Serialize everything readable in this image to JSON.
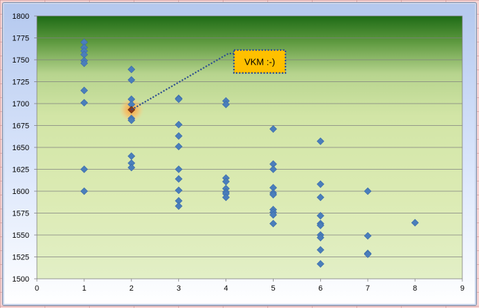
{
  "chart_data": {
    "type": "scatter",
    "title": "",
    "xlabel": "",
    "ylabel": "",
    "xlim": [
      0,
      9
    ],
    "ylim": [
      1500,
      1800
    ],
    "x_ticks": [
      "0",
      "1",
      "2",
      "3",
      "4",
      "5",
      "6",
      "7",
      "8",
      "9"
    ],
    "y_ticks": [
      "1500",
      "1525",
      "1550",
      "1575",
      "1600",
      "1625",
      "1650",
      "1675",
      "1700",
      "1725",
      "1750",
      "1775",
      "1800"
    ],
    "grid": "horizontal",
    "marker": "diamond",
    "marker_color": "#4a7ebb",
    "highlight_color": "#8b3a1a",
    "plot_background": "green-to-pale-gradient",
    "series": [
      {
        "points": [
          [
            1,
            1770
          ],
          [
            1,
            1764
          ],
          [
            1,
            1760
          ],
          [
            1,
            1756
          ],
          [
            1,
            1749
          ],
          [
            1,
            1746
          ],
          [
            1,
            1715
          ],
          [
            1,
            1701
          ],
          [
            1,
            1625
          ],
          [
            1,
            1600
          ],
          [
            2,
            1739
          ],
          [
            2,
            1727
          ],
          [
            2,
            1705
          ],
          [
            2,
            1699
          ],
          [
            2,
            1693
          ],
          [
            2,
            1683
          ],
          [
            2,
            1681
          ],
          [
            2,
            1640
          ],
          [
            2,
            1632
          ],
          [
            2,
            1627
          ],
          [
            3,
            1706
          ],
          [
            3,
            1705
          ],
          [
            3,
            1676
          ],
          [
            3,
            1663
          ],
          [
            3,
            1651
          ],
          [
            3,
            1625
          ],
          [
            3,
            1614
          ],
          [
            3,
            1601
          ],
          [
            3,
            1589
          ],
          [
            3,
            1583
          ],
          [
            4,
            1703
          ],
          [
            4,
            1699
          ],
          [
            4,
            1615
          ],
          [
            4,
            1611
          ],
          [
            4,
            1603
          ],
          [
            4,
            1599
          ],
          [
            4,
            1597
          ],
          [
            4,
            1593
          ],
          [
            5,
            1671
          ],
          [
            5,
            1631
          ],
          [
            5,
            1625
          ],
          [
            5,
            1604
          ],
          [
            5,
            1598
          ],
          [
            5,
            1596
          ],
          [
            5,
            1579
          ],
          [
            5,
            1576
          ],
          [
            5,
            1573
          ],
          [
            5,
            1563
          ],
          [
            6,
            1657
          ],
          [
            6,
            1608
          ],
          [
            6,
            1593
          ],
          [
            6,
            1572
          ],
          [
            6,
            1563
          ],
          [
            6,
            1561
          ],
          [
            6,
            1550
          ],
          [
            6,
            1547
          ],
          [
            6,
            1533
          ],
          [
            6,
            1517
          ],
          [
            7,
            1600
          ],
          [
            7,
            1549
          ],
          [
            7,
            1529
          ],
          [
            7,
            1528
          ],
          [
            8,
            1564
          ]
        ]
      }
    ],
    "annotation": {
      "text": "VKM :-)",
      "point": [
        2,
        1693
      ],
      "box_color": "#ffc000"
    }
  }
}
